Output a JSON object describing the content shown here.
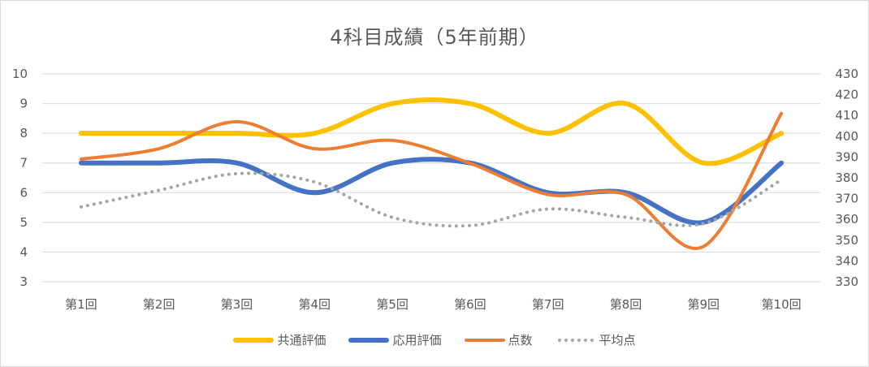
{
  "chart_data": {
    "type": "line",
    "title": "4科目成績（5年前期）",
    "categories": [
      "第1回",
      "第2回",
      "第3回",
      "第4回",
      "第5回",
      "第6回",
      "第7回",
      "第8回",
      "第9回",
      "第10回"
    ],
    "series": [
      {
        "name": "共通評価",
        "axis": "left",
        "color": "#FFC000",
        "style": "solid-thick",
        "values": [
          8,
          8,
          8,
          8,
          9,
          9,
          8,
          9,
          7,
          8
        ]
      },
      {
        "name": "応用評価",
        "axis": "left",
        "color": "#4472C4",
        "style": "solid-thick",
        "values": [
          7,
          7,
          7,
          6,
          7,
          7,
          6,
          6,
          5,
          7
        ]
      },
      {
        "name": "点数",
        "axis": "right",
        "color": "#ED7D31",
        "style": "solid",
        "values": [
          389,
          394,
          407,
          394,
          398,
          387,
          372,
          372,
          347,
          411
        ]
      },
      {
        "name": "平均点",
        "axis": "right",
        "color": "#A5A5A5",
        "style": "dotted",
        "values": [
          366,
          374,
          382,
          378,
          361,
          357,
          365,
          361,
          358,
          379
        ]
      }
    ],
    "y_left": {
      "min": 3,
      "max": 10,
      "ticks": [
        3,
        4,
        5,
        6,
        7,
        8,
        9,
        10
      ]
    },
    "y_right": {
      "min": 330,
      "max": 430,
      "ticks": [
        330,
        340,
        350,
        360,
        370,
        380,
        390,
        400,
        410,
        420,
        430
      ]
    },
    "xlabel": "",
    "ylabel": "",
    "grid": true,
    "legend_position": "bottom",
    "smoothed": true
  },
  "legend": {
    "items": [
      {
        "label": "共通評価"
      },
      {
        "label": "応用評価"
      },
      {
        "label": "点数"
      },
      {
        "label": "平均点"
      }
    ]
  }
}
